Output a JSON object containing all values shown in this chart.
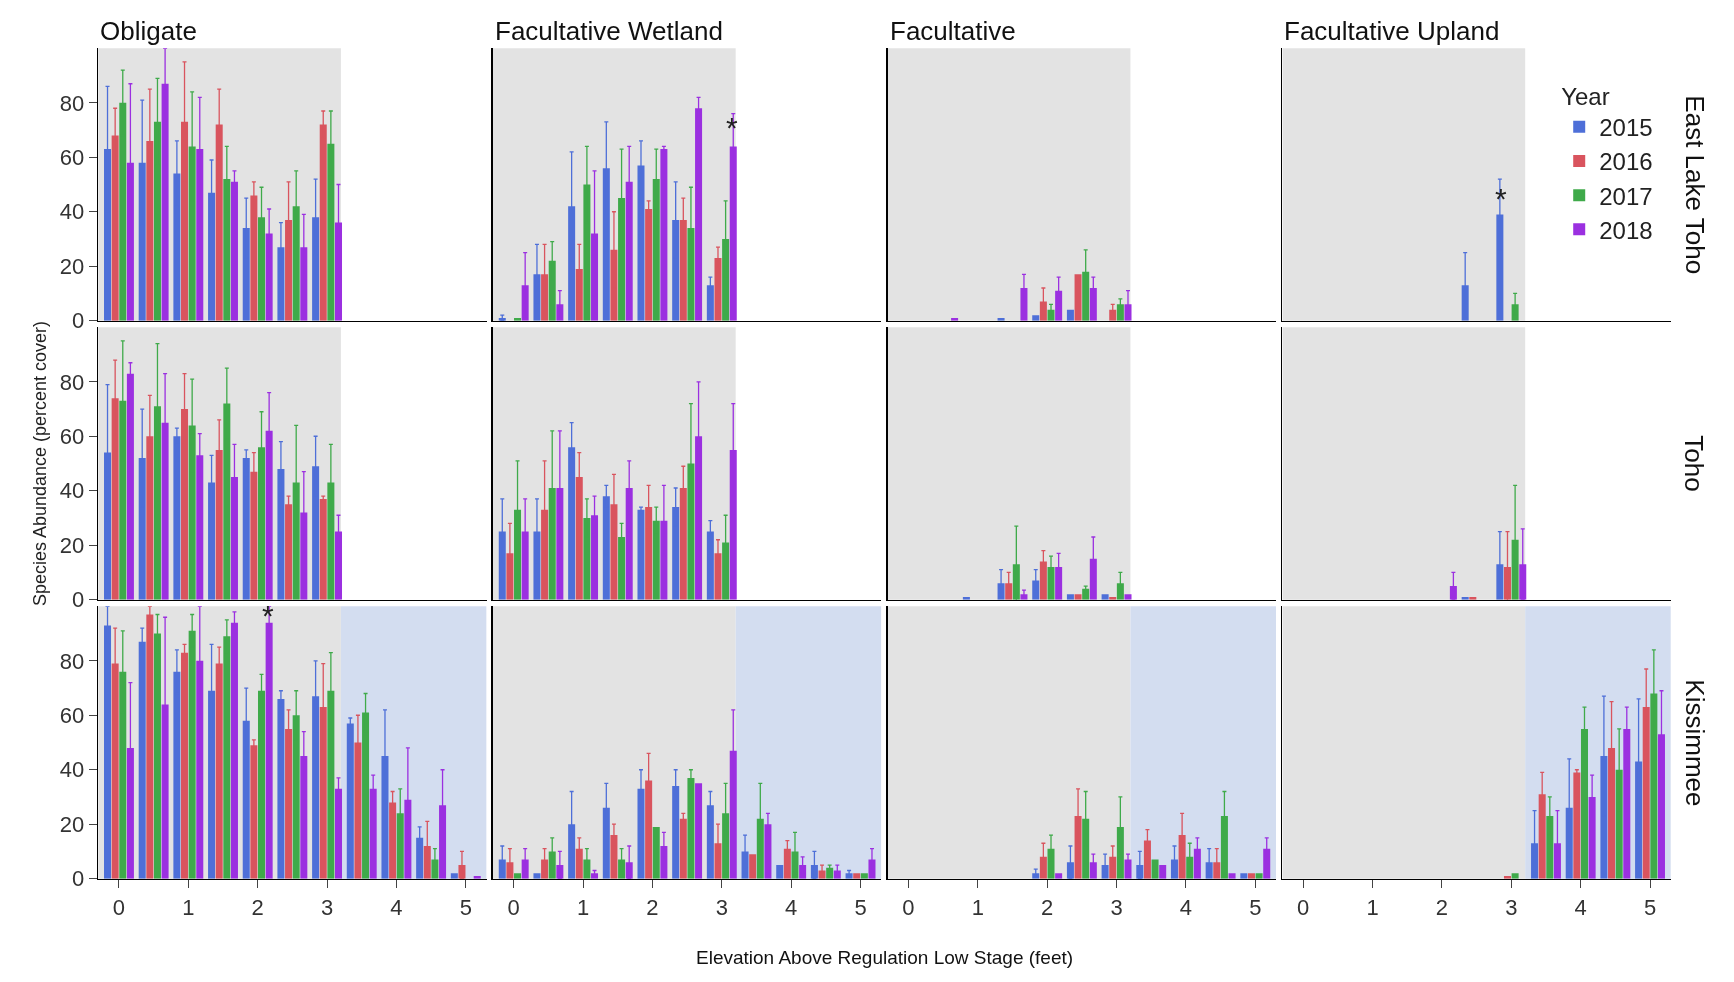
{
  "chart_data": [
    {
      "type": "bar",
      "title": "Obligate",
      "x": [
        0,
        0.5,
        1,
        1.5,
        2,
        2.5,
        3
      ],
      "xlim": [
        -0.3,
        5.3
      ],
      "xticks": [
        0,
        1,
        2,
        3,
        4,
        5
      ],
      "ylim": [
        0,
        100
      ],
      "yticks": [
        0,
        20,
        40,
        60,
        80
      ],
      "tick_labels": "y",
      "bands": [
        {
          "axis": "x",
          "from": -0.3,
          "to": 3.2,
          "color": "#e3e3e3"
        }
      ],
      "series": [
        {
          "color": "#4e6fd8",
          "values": [
            63,
            58,
            54,
            47,
            34,
            27,
            38
          ],
          "errors": [
            23,
            23,
            12,
            12,
            11,
            9,
            14
          ]
        },
        {
          "color": "#d9545e",
          "values": [
            68,
            66,
            73,
            72,
            46,
            37,
            72
          ],
          "errors": [
            10,
            19,
            22,
            13,
            5,
            14,
            5
          ]
        },
        {
          "color": "#3faa4a",
          "values": [
            80,
            73,
            64,
            52,
            38,
            42,
            65
          ],
          "errors": [
            12,
            16,
            20,
            12,
            11,
            13,
            12
          ]
        },
        {
          "color": "#9b30e0",
          "values": [
            58,
            87,
            63,
            51,
            32,
            27,
            36
          ],
          "errors": [
            29,
            13,
            19,
            4,
            9,
            12,
            14
          ]
        }
      ]
    },
    {
      "type": "bar",
      "title": "Facultative Wetland",
      "x": [
        0,
        0.5,
        1,
        1.5,
        2,
        2.5,
        3
      ],
      "xlim": [
        -0.3,
        5.3
      ],
      "xticks": [
        0,
        1,
        2,
        3,
        4,
        5
      ],
      "ylim": [
        0,
        100
      ],
      "yticks": [
        0,
        20,
        40,
        60,
        80
      ],
      "tick_labels": false,
      "bands": [
        {
          "axis": "x",
          "from": -0.3,
          "to": 3.2,
          "color": "#e3e3e3"
        }
      ],
      "annotations": [
        "*"
      ],
      "series": [
        {
          "color": "#4e6fd8",
          "values": [
            1,
            17,
            42,
            56,
            57,
            37,
            13
          ],
          "errors": [
            1,
            11,
            20,
            17,
            9,
            14,
            3
          ]
        },
        {
          "color": "#d9545e",
          "values": [
            0,
            17,
            19,
            26,
            41,
            37,
            23
          ],
          "errors": [
            null,
            11,
            9,
            14,
            3,
            8,
            4
          ]
        },
        {
          "color": "#3faa4a",
          "values": [
            1,
            22,
            50,
            45,
            52,
            34,
            30
          ],
          "errors": [
            null,
            7,
            14,
            18,
            11,
            15,
            14
          ]
        },
        {
          "color": "#9b30e0",
          "values": [
            13,
            6,
            32,
            51,
            63,
            78,
            64
          ],
          "errors": [
            12,
            5,
            23,
            13,
            1,
            4,
            12
          ]
        }
      ]
    },
    {
      "type": "bar",
      "title": "Facultative",
      "x": [
        0,
        0.5,
        1,
        1.5,
        2,
        2.5,
        3
      ],
      "xlim": [
        -0.3,
        5.3
      ],
      "xticks": [
        0,
        1,
        2,
        3,
        4,
        5
      ],
      "ylim": [
        0,
        100
      ],
      "yticks": [
        0,
        20,
        40,
        60,
        80
      ],
      "tick_labels": false,
      "bands": [
        {
          "axis": "x",
          "from": -0.3,
          "to": 3.2,
          "color": "#e3e3e3"
        }
      ],
      "series": [
        {
          "color": "#4e6fd8",
          "values": [
            0,
            0,
            0,
            1,
            2,
            4,
            0
          ]
        },
        {
          "color": "#d9545e",
          "values": [
            0,
            0,
            0,
            0,
            7,
            17,
            4
          ],
          "errors": [
            null,
            null,
            null,
            null,
            5,
            null,
            2
          ]
        },
        {
          "color": "#3faa4a",
          "values": [
            0,
            0,
            0,
            0,
            4,
            18,
            6
          ],
          "errors": [
            null,
            null,
            null,
            null,
            2,
            8,
            2
          ]
        },
        {
          "color": "#9b30e0",
          "values": [
            0,
            1,
            0,
            12,
            11,
            12,
            6
          ],
          "errors": [
            null,
            null,
            null,
            5,
            5,
            4,
            5
          ]
        }
      ]
    },
    {
      "type": "bar",
      "title": "Facultative Upland",
      "x": [
        0,
        0.5,
        1,
        1.5,
        2,
        2.5,
        3
      ],
      "xlim": [
        -0.3,
        5.3
      ],
      "xticks": [
        0,
        1,
        2,
        3,
        4,
        5
      ],
      "ylim": [
        0,
        100
      ],
      "yticks": [
        0,
        20,
        40,
        60,
        80
      ],
      "tick_labels": false,
      "bands": [
        {
          "axis": "x",
          "from": -0.3,
          "to": 3.2,
          "color": "#e3e3e3"
        }
      ],
      "y2label": "East Lake Toho",
      "annotations": [
        "*"
      ],
      "legend": "top right",
      "legend_title": "Year",
      "series": [
        {
          "name": "2015",
          "color": "#4e6fd8",
          "values": [
            0,
            0,
            0,
            0,
            0,
            13,
            39
          ],
          "errors": [
            null,
            null,
            null,
            null,
            null,
            12,
            13
          ]
        },
        {
          "name": "2016",
          "color": "#d9545e",
          "values": [
            0,
            0,
            0,
            0,
            0,
            0,
            0
          ]
        },
        {
          "name": "2017",
          "color": "#3faa4a",
          "values": [
            0,
            0,
            0,
            0,
            0,
            0,
            6
          ],
          "errors": [
            null,
            null,
            null,
            null,
            null,
            null,
            4
          ]
        },
        {
          "name": "2018",
          "color": "#9b30e0",
          "values": [
            0,
            0,
            0,
            0,
            0,
            0,
            0
          ]
        }
      ]
    },
    {
      "type": "bar",
      "ylabel": "Species Abundance (percent cover)",
      "x": [
        0,
        0.5,
        1,
        1.5,
        2,
        2.5,
        3
      ],
      "xlim": [
        -0.3,
        5.3
      ],
      "xticks": [
        0,
        1,
        2,
        3,
        4,
        5
      ],
      "ylim": [
        0,
        100
      ],
      "yticks": [
        0,
        20,
        40,
        60,
        80
      ],
      "tick_labels": "y",
      "bands": [
        {
          "axis": "x",
          "from": -0.3,
          "to": 3.2,
          "color": "#e3e3e3"
        }
      ],
      "series": [
        {
          "color": "#4e6fd8",
          "values": [
            54,
            52,
            60,
            43,
            52,
            48,
            49
          ],
          "errors": [
            25,
            18,
            3,
            10,
            3,
            10,
            11
          ]
        },
        {
          "color": "#d9545e",
          "values": [
            74,
            60,
            70,
            55,
            47,
            35,
            37
          ],
          "errors": [
            14,
            15,
            13,
            11,
            7,
            3,
            1
          ]
        },
        {
          "color": "#3faa4a",
          "values": [
            73,
            71,
            64,
            72,
            56,
            43,
            43
          ],
          "errors": [
            22,
            23,
            17,
            13,
            13,
            21,
            14
          ]
        },
        {
          "color": "#9b30e0",
          "values": [
            83,
            65,
            53,
            45,
            62,
            32,
            25
          ],
          "errors": [
            4,
            18,
            8,
            12,
            14,
            15,
            6
          ]
        }
      ]
    },
    {
      "type": "bar",
      "x": [
        0,
        0.5,
        1,
        1.5,
        2,
        2.5,
        3
      ],
      "xlim": [
        -0.3,
        5.3
      ],
      "xticks": [
        0,
        1,
        2,
        3,
        4,
        5
      ],
      "ylim": [
        0,
        100
      ],
      "yticks": [
        0,
        20,
        40,
        60,
        80
      ],
      "tick_labels": false,
      "bands": [
        {
          "axis": "x",
          "from": -0.3,
          "to": 3.2,
          "color": "#e3e3e3"
        }
      ],
      "series": [
        {
          "color": "#4e6fd8",
          "values": [
            25,
            25,
            56,
            38,
            33,
            34,
            25
          ],
          "errors": [
            12,
            12,
            9,
            4,
            1,
            7,
            4
          ]
        },
        {
          "color": "#d9545e",
          "values": [
            17,
            33,
            45,
            35,
            34,
            41,
            17
          ],
          "errors": [
            11,
            18,
            9,
            11,
            8,
            8,
            5
          ]
        },
        {
          "color": "#3faa4a",
          "values": [
            33,
            41,
            30,
            23,
            29,
            50,
            21
          ],
          "errors": [
            18,
            21,
            7,
            5,
            5,
            22,
            10
          ]
        },
        {
          "color": "#9b30e0",
          "values": [
            25,
            41,
            31,
            41,
            29,
            60,
            55
          ],
          "errors": [
            12,
            21,
            7,
            10,
            13,
            20,
            17
          ]
        }
      ]
    },
    {
      "type": "bar",
      "x": [
        0,
        0.5,
        1,
        1.5,
        2,
        2.5,
        3
      ],
      "xlim": [
        -0.3,
        5.3
      ],
      "xticks": [
        0,
        1,
        2,
        3,
        4,
        5
      ],
      "ylim": [
        0,
        100
      ],
      "yticks": [
        0,
        20,
        40,
        60,
        80
      ],
      "tick_labels": false,
      "bands": [
        {
          "axis": "x",
          "from": -0.3,
          "to": 3.2,
          "color": "#e3e3e3"
        }
      ],
      "series": [
        {
          "color": "#4e6fd8",
          "values": [
            0,
            0,
            1,
            6,
            7,
            2,
            2
          ],
          "errors": [
            null,
            null,
            null,
            5,
            4,
            null,
            null
          ]
        },
        {
          "color": "#d9545e",
          "values": [
            0,
            0,
            0,
            6,
            14,
            2,
            1
          ],
          "errors": [
            null,
            null,
            null,
            4,
            4,
            null,
            null
          ]
        },
        {
          "color": "#3faa4a",
          "values": [
            0,
            0,
            0,
            13,
            12,
            4,
            6
          ],
          "errors": [
            null,
            null,
            null,
            14,
            4,
            1,
            4
          ]
        },
        {
          "color": "#9b30e0",
          "values": [
            0,
            0,
            0,
            2,
            12,
            15,
            2
          ],
          "errors": [
            null,
            null,
            null,
            1.5,
            5,
            8,
            null
          ]
        }
      ]
    },
    {
      "type": "bar",
      "x": [
        0,
        0.5,
        1,
        1.5,
        2,
        2.5,
        3
      ],
      "xlim": [
        -0.3,
        5.3
      ],
      "xticks": [
        0,
        1,
        2,
        3,
        4,
        5
      ],
      "ylim": [
        0,
        100
      ],
      "yticks": [
        0,
        20,
        40,
        60,
        80
      ],
      "tick_labels": false,
      "bands": [
        {
          "axis": "x",
          "from": -0.3,
          "to": 3.2,
          "color": "#e3e3e3"
        }
      ],
      "y2label": "Toho",
      "series": [
        {
          "color": "#4e6fd8",
          "values": [
            0,
            0,
            0,
            0,
            0,
            1,
            13
          ],
          "errors": [
            null,
            null,
            null,
            null,
            null,
            null,
            12
          ]
        },
        {
          "color": "#d9545e",
          "values": [
            0,
            0,
            0,
            0,
            0,
            1,
            12
          ],
          "errors": [
            null,
            null,
            null,
            null,
            null,
            null,
            13
          ]
        },
        {
          "color": "#3faa4a",
          "values": [
            0,
            0,
            0,
            0,
            0,
            0,
            22
          ],
          "errors": [
            null,
            null,
            null,
            null,
            null,
            null,
            20
          ]
        },
        {
          "color": "#9b30e0",
          "values": [
            0,
            0,
            0,
            0,
            5,
            0,
            13
          ],
          "errors": [
            null,
            null,
            null,
            null,
            5,
            null,
            13
          ]
        }
      ]
    },
    {
      "type": "bar",
      "x": [
        0,
        0.5,
        1,
        1.5,
        2,
        2.5,
        3,
        3.5,
        4,
        4.5,
        5
      ],
      "xlim": [
        -0.3,
        5.3
      ],
      "xticks": [
        0,
        1,
        2,
        3,
        4,
        5
      ],
      "ylim": [
        0,
        100
      ],
      "yticks": [
        0,
        20,
        40,
        60,
        80
      ],
      "bands": [
        {
          "axis": "x",
          "from": -0.3,
          "to": 3.2,
          "color": "#e3e3e3"
        },
        {
          "axis": "x",
          "from": 3.2,
          "to": 5.3,
          "color": "#d3ddf0"
        }
      ],
      "annotations": [
        "*"
      ],
      "series": [
        {
          "color": "#4e6fd8",
          "values": [
            93,
            87,
            76,
            69,
            58,
            66,
            67,
            57,
            45,
            15,
            2
          ],
          "errors": [
            7,
            5,
            8,
            17,
            12,
            3,
            13,
            2,
            17,
            4,
            null
          ]
        },
        {
          "color": "#d9545e",
          "values": [
            79,
            97,
            83,
            79,
            49,
            55,
            63,
            50,
            28,
            12,
            5
          ],
          "errors": [
            13,
            3,
            3,
            6,
            2,
            7,
            16,
            10,
            4,
            9,
            5
          ]
        },
        {
          "color": "#3faa4a",
          "values": [
            76,
            90,
            91,
            89,
            69,
            60,
            69,
            61,
            24,
            7,
            0
          ],
          "errors": [
            15,
            7,
            6,
            6,
            6,
            9,
            14,
            7,
            9,
            4,
            null
          ]
        },
        {
          "color": "#9b30e0",
          "values": [
            48,
            64,
            80,
            94,
            94,
            45,
            33,
            33,
            29,
            27,
            1
          ],
          "errors": [
            24,
            32,
            20,
            4,
            6,
            9,
            4,
            5,
            19,
            13,
            null
          ]
        }
      ]
    },
    {
      "type": "bar",
      "xlabel": "Elevation Above Regulation Low Stage (feet)",
      "x": [
        0,
        0.5,
        1,
        1.5,
        2,
        2.5,
        3,
        3.5,
        4,
        4.5,
        5
      ],
      "xlim": [
        -0.3,
        5.3
      ],
      "xticks": [
        0,
        1,
        2,
        3,
        4,
        5
      ],
      "ylim": [
        0,
        100
      ],
      "yticks": [
        0,
        20,
        40,
        60,
        80
      ],
      "tick_labels": "x",
      "bands": [
        {
          "axis": "x",
          "from": -0.3,
          "to": 3.2,
          "color": "#e3e3e3"
        },
        {
          "axis": "x",
          "from": 3.2,
          "to": 5.3,
          "color": "#d3ddf0"
        }
      ],
      "series": [
        {
          "color": "#4e6fd8",
          "values": [
            7,
            2,
            20,
            26,
            33,
            34,
            27,
            10,
            5,
            5,
            2
          ],
          "errors": [
            5,
            null,
            12,
            9,
            7,
            6,
            5,
            6,
            null,
            5,
            1
          ]
        },
        {
          "color": "#d9545e",
          "values": [
            6,
            7,
            11,
            16,
            36,
            22,
            13,
            9,
            11,
            3,
            2
          ],
          "errors": [
            5,
            4,
            4,
            4,
            10,
            2,
            7,
            null,
            3,
            2,
            null
          ]
        },
        {
          "color": "#3faa4a",
          "values": [
            2,
            10,
            7,
            7,
            19,
            37,
            24,
            22,
            10,
            4,
            2
          ],
          "errors": [
            null,
            5,
            4,
            4,
            null,
            3,
            11,
            13,
            7,
            1,
            null
          ]
        },
        {
          "color": "#9b30e0",
          "values": [
            7,
            5,
            2,
            6,
            12,
            35,
            47,
            20,
            5,
            3,
            7
          ],
          "errors": [
            4,
            5,
            1,
            6,
            5,
            null,
            15,
            4,
            3,
            2,
            4
          ]
        }
      ]
    },
    {
      "type": "bar",
      "x": [
        0,
        0.5,
        1,
        1.5,
        2,
        2.5,
        3,
        3.5,
        4,
        4.5,
        5
      ],
      "xlim": [
        -0.3,
        5.3
      ],
      "xticks": [
        0,
        1,
        2,
        3,
        4,
        5
      ],
      "ylim": [
        0,
        100
      ],
      "yticks": [
        0,
        20,
        40,
        60,
        80
      ],
      "tick_labels": "x",
      "bands": [
        {
          "axis": "x",
          "from": -0.3,
          "to": 3.2,
          "color": "#e3e3e3"
        },
        {
          "axis": "x",
          "from": 3.2,
          "to": 5.3,
          "color": "#d3ddf0"
        }
      ],
      "series": [
        {
          "color": "#4e6fd8",
          "values": [
            0,
            0,
            0,
            0,
            2,
            6,
            5,
            5,
            7,
            6,
            2
          ],
          "errors": [
            null,
            null,
            null,
            null,
            1.5,
            6,
            4,
            5,
            5,
            5,
            null
          ]
        },
        {
          "color": "#d9545e",
          "values": [
            0,
            0,
            0,
            0,
            8,
            23,
            8,
            14,
            16,
            6,
            2
          ],
          "errors": [
            null,
            null,
            null,
            null,
            5,
            10,
            4,
            4,
            8,
            5,
            null
          ]
        },
        {
          "color": "#3faa4a",
          "values": [
            0,
            0,
            0,
            0,
            11,
            22,
            19,
            7,
            8,
            23,
            2
          ],
          "errors": [
            null,
            null,
            null,
            null,
            5,
            10,
            11,
            null,
            5,
            9,
            null
          ]
        },
        {
          "color": "#9b30e0",
          "values": [
            0,
            0,
            0,
            0,
            2,
            6,
            7,
            5,
            11,
            2,
            11
          ],
          "errors": [
            null,
            null,
            null,
            null,
            null,
            3,
            2,
            null,
            4,
            null,
            4
          ]
        }
      ]
    },
    {
      "type": "bar",
      "x": [
        0,
        0.5,
        1,
        1.5,
        2,
        2.5,
        3,
        3.5,
        4,
        4.5,
        5
      ],
      "xlim": [
        -0.3,
        5.3
      ],
      "xticks": [
        0,
        1,
        2,
        3,
        4,
        5
      ],
      "ylim": [
        0,
        100
      ],
      "yticks": [
        0,
        20,
        40,
        60,
        80
      ],
      "tick_labels": "x",
      "bands": [
        {
          "axis": "x",
          "from": -0.3,
          "to": 3.2,
          "color": "#e3e3e3"
        },
        {
          "axis": "x",
          "from": 3.2,
          "to": 5.3,
          "color": "#d3ddf0"
        }
      ],
      "y2label": "Kissimmee",
      "series": [
        {
          "color": "#4e6fd8",
          "values": [
            0,
            0,
            0,
            0,
            0,
            0,
            0,
            13,
            26,
            45,
            43
          ],
          "errors": [
            null,
            null,
            null,
            null,
            null,
            null,
            null,
            12,
            18,
            22,
            23
          ]
        },
        {
          "color": "#d9545e",
          "values": [
            0,
            0,
            0,
            0,
            0,
            0,
            1,
            31,
            39,
            48,
            63
          ],
          "errors": [
            null,
            null,
            null,
            null,
            null,
            null,
            null,
            8,
            1,
            17,
            14
          ]
        },
        {
          "color": "#3faa4a",
          "values": [
            0,
            0,
            0,
            0,
            0,
            0,
            2,
            23,
            55,
            40,
            68
          ],
          "errors": [
            null,
            null,
            null,
            null,
            null,
            null,
            null,
            7,
            8,
            15,
            16
          ]
        },
        {
          "color": "#9b30e0",
          "values": [
            0,
            0,
            0,
            0,
            0,
            0,
            0,
            13,
            30,
            55,
            53
          ],
          "errors": [
            null,
            null,
            null,
            null,
            null,
            null,
            null,
            12,
            8,
            8,
            16
          ]
        }
      ]
    }
  ]
}
